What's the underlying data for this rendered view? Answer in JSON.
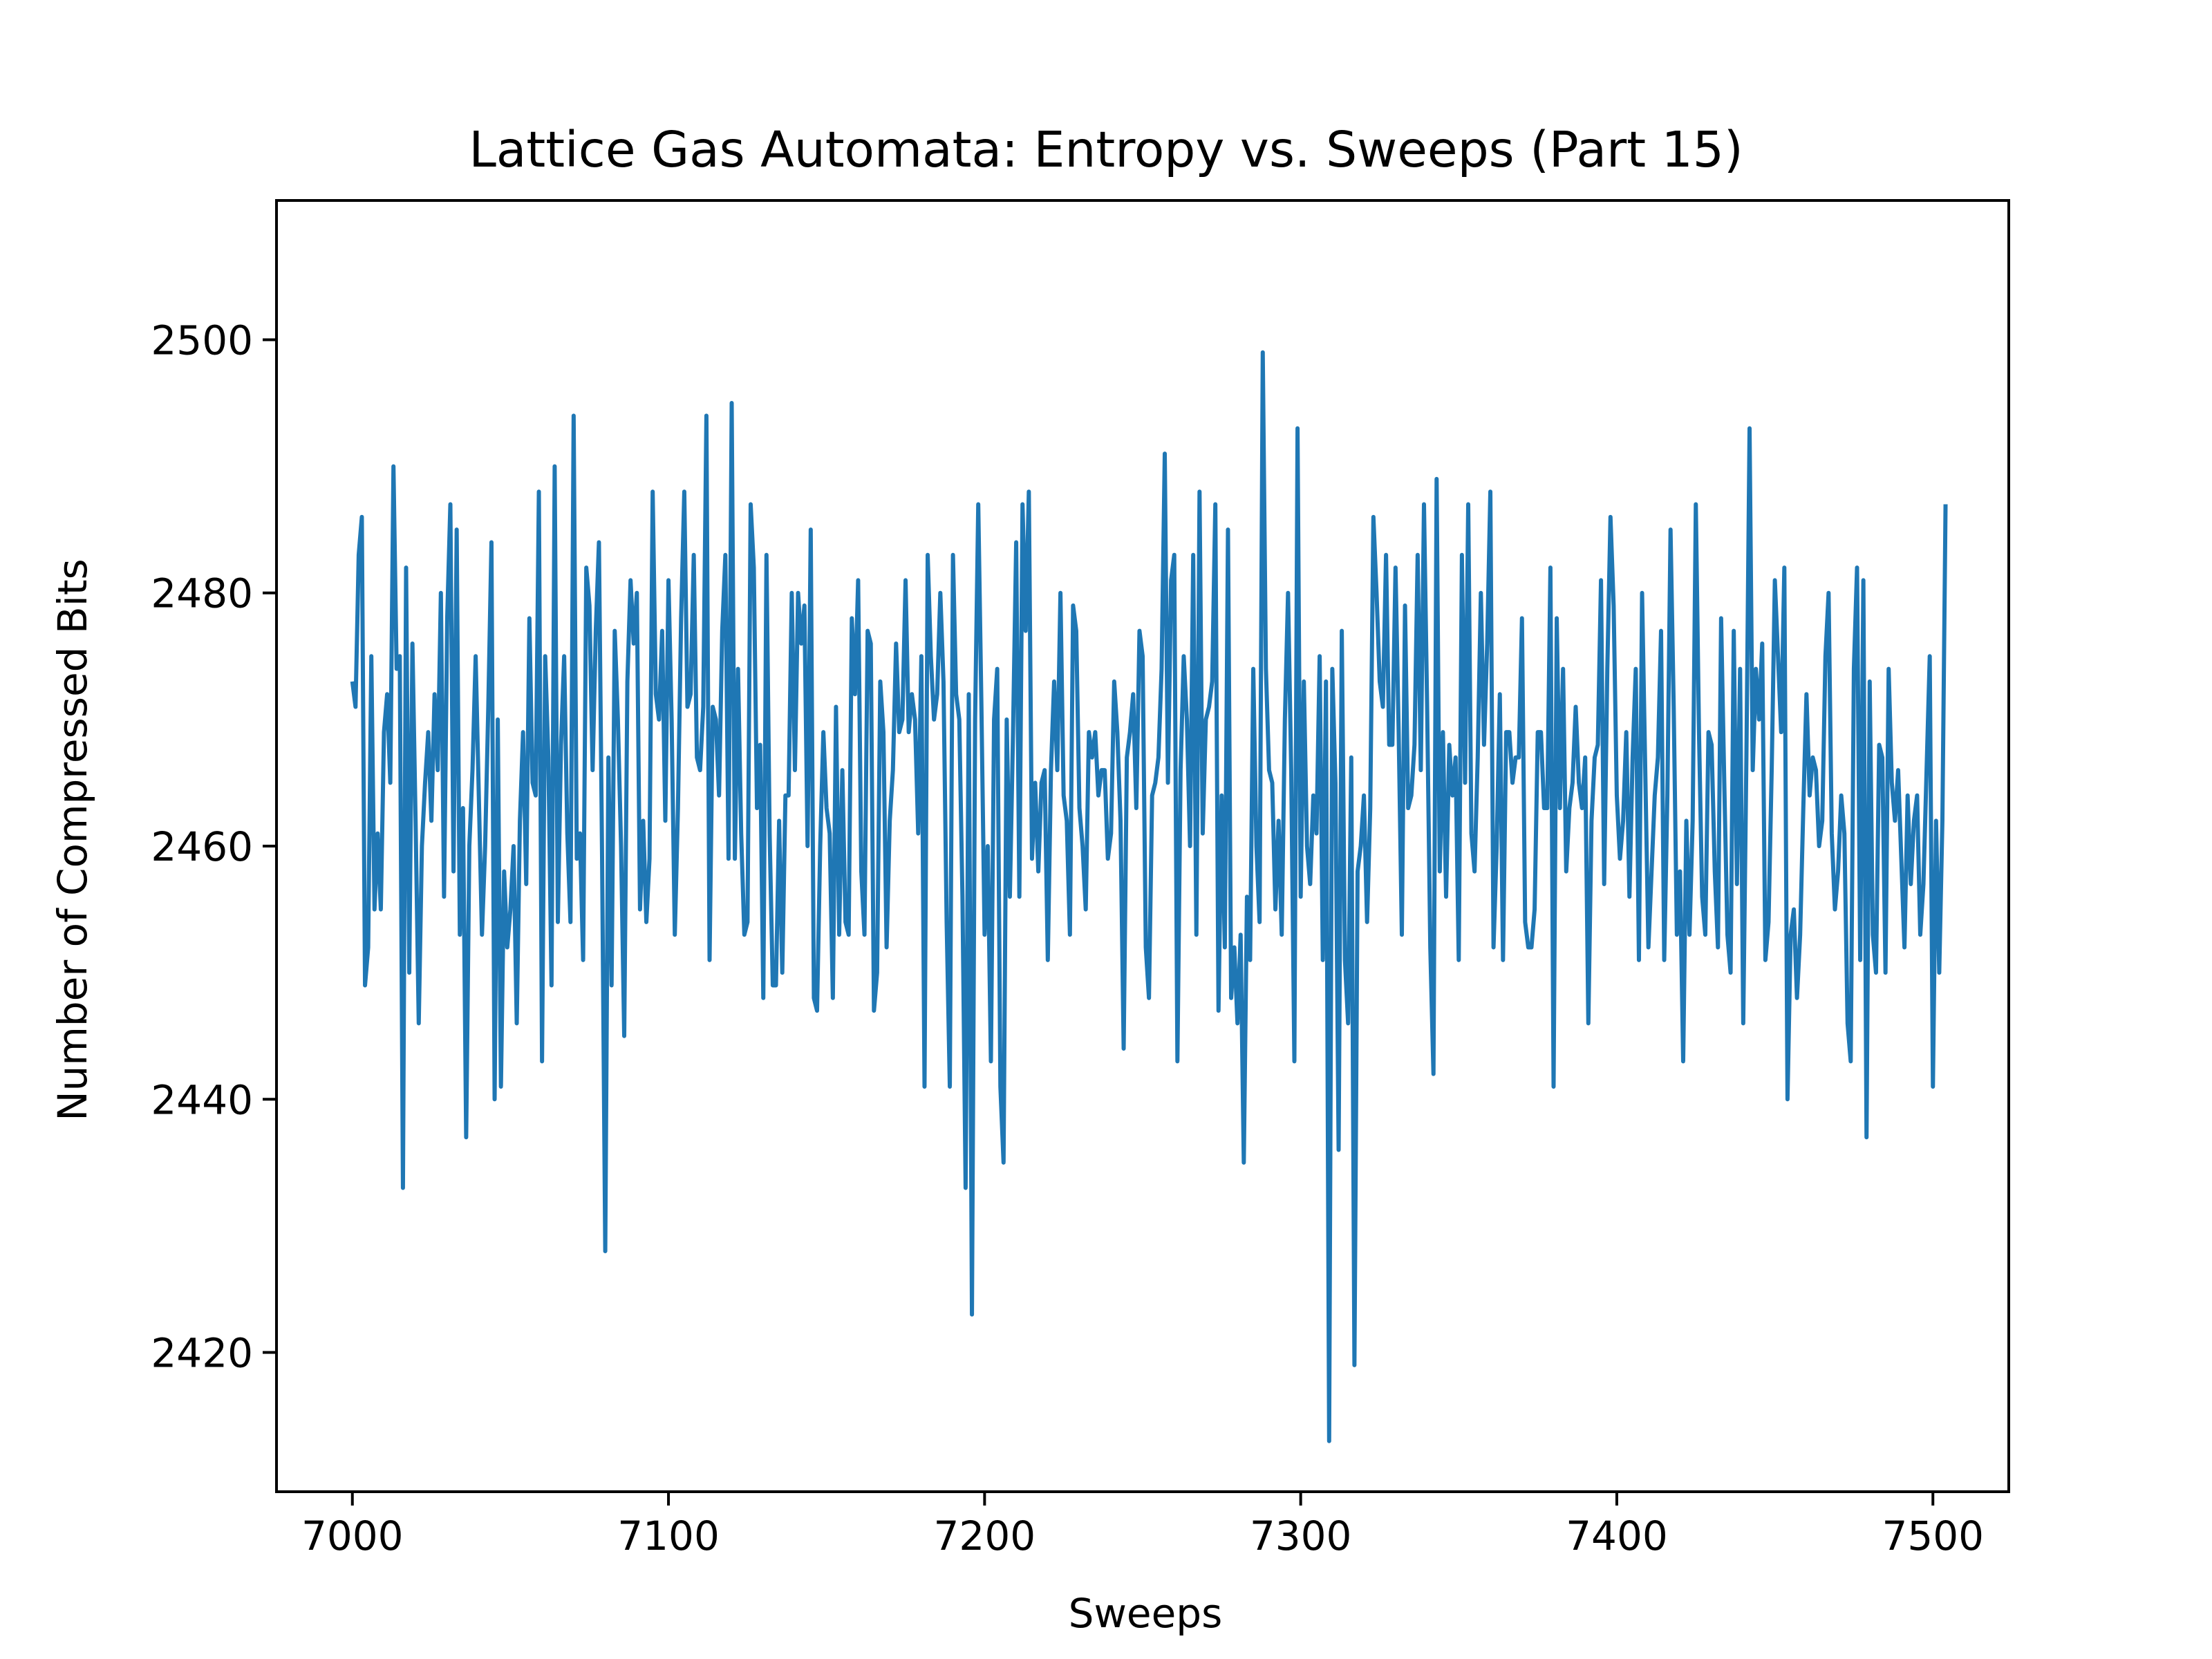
{
  "chart_data": {
    "type": "line",
    "title": "Lattice Gas Automata: Entropy vs. Sweeps (Part 15)",
    "xlabel": "Sweeps",
    "ylabel": "Number of Compressed Bits",
    "xlim": [
      6976,
      7524
    ],
    "ylim": [
      2409,
      2511
    ],
    "xticks": [
      7000,
      7100,
      7200,
      7300,
      7400,
      7500
    ],
    "yticks": [
      2420,
      2440,
      2460,
      2480,
      2500
    ],
    "grid": false,
    "legend": "none",
    "series": [
      {
        "color": "#1f77b4",
        "x_start": 7000,
        "x_step": 1,
        "values": [
          2473,
          2471,
          2483,
          2486,
          2449,
          2452,
          2475,
          2455,
          2461,
          2455,
          2469,
          2472,
          2465,
          2490,
          2474,
          2475,
          2433,
          2482,
          2450,
          2476,
          2462,
          2446,
          2460,
          2465,
          2469,
          2462,
          2472,
          2466,
          2480,
          2456,
          2478,
          2487,
          2458,
          2485,
          2453,
          2463,
          2437,
          2460,
          2466,
          2475,
          2464,
          2453,
          2460,
          2471,
          2484,
          2440,
          2470,
          2441,
          2458,
          2452,
          2455,
          2460,
          2446,
          2462,
          2469,
          2457,
          2478,
          2465,
          2464,
          2488,
          2443,
          2475,
          2467,
          2449,
          2490,
          2454,
          2468,
          2475,
          2461,
          2454,
          2494,
          2459,
          2461,
          2451,
          2482,
          2479,
          2466,
          2477,
          2484,
          2459,
          2428,
          2467,
          2449,
          2477,
          2470,
          2460,
          2445,
          2473,
          2481,
          2476,
          2480,
          2455,
          2462,
          2454,
          2459,
          2488,
          2472,
          2470,
          2477,
          2462,
          2481,
          2470,
          2453,
          2463,
          2478,
          2488,
          2471,
          2472,
          2483,
          2467,
          2466,
          2471,
          2494,
          2451,
          2471,
          2470,
          2464,
          2477,
          2483,
          2459,
          2495,
          2459,
          2474,
          2461,
          2453,
          2454,
          2487,
          2482,
          2463,
          2468,
          2448,
          2483,
          2461,
          2449,
          2449,
          2462,
          2450,
          2464,
          2464,
          2480,
          2466,
          2480,
          2476,
          2479,
          2460,
          2485,
          2448,
          2447,
          2460,
          2469,
          2463,
          2461,
          2448,
          2471,
          2453,
          2466,
          2454,
          2453,
          2478,
          2472,
          2481,
          2458,
          2453,
          2477,
          2476,
          2447,
          2450,
          2473,
          2469,
          2452,
          2462,
          2466,
          2476,
          2469,
          2470,
          2481,
          2469,
          2472,
          2470,
          2461,
          2475,
          2441,
          2483,
          2475,
          2470,
          2472,
          2480,
          2473,
          2454,
          2441,
          2483,
          2472,
          2470,
          2456,
          2433,
          2472,
          2423,
          2470,
          2487,
          2471,
          2453,
          2460,
          2443,
          2470,
          2474,
          2441,
          2435,
          2470,
          2456,
          2469,
          2484,
          2456,
          2487,
          2477,
          2488,
          2459,
          2465,
          2458,
          2465,
          2466,
          2451,
          2466,
          2473,
          2466,
          2480,
          2464,
          2462,
          2453,
          2479,
          2477,
          2463,
          2460,
          2455,
          2469,
          2467,
          2469,
          2464,
          2466,
          2466,
          2459,
          2461,
          2473,
          2469,
          2462,
          2444,
          2467,
          2469,
          2472,
          2463,
          2477,
          2475,
          2452,
          2448,
          2464,
          2465,
          2467,
          2474,
          2491,
          2465,
          2481,
          2483,
          2443,
          2466,
          2475,
          2470,
          2460,
          2483,
          2453,
          2488,
          2461,
          2470,
          2471,
          2473,
          2487,
          2447,
          2464,
          2452,
          2485,
          2448,
          2452,
          2446,
          2453,
          2435,
          2456,
          2451,
          2474,
          2460,
          2454,
          2499,
          2474,
          2466,
          2465,
          2455,
          2462,
          2453,
          2470,
          2480,
          2466,
          2443,
          2493,
          2456,
          2473,
          2460,
          2457,
          2464,
          2461,
          2475,
          2451,
          2473,
          2413,
          2474,
          2465,
          2436,
          2477,
          2451,
          2446,
          2467,
          2419,
          2458,
          2460,
          2464,
          2454,
          2463,
          2486,
          2480,
          2473,
          2471,
          2483,
          2468,
          2468,
          2482,
          2469,
          2453,
          2479,
          2463,
          2464,
          2468,
          2483,
          2466,
          2487,
          2471,
          2452,
          2442,
          2489,
          2458,
          2469,
          2456,
          2468,
          2464,
          2467,
          2451,
          2483,
          2465,
          2487,
          2461,
          2458,
          2467,
          2480,
          2468,
          2476,
          2488,
          2452,
          2460,
          2472,
          2451,
          2469,
          2469,
          2465,
          2467,
          2467,
          2478,
          2454,
          2452,
          2452,
          2455,
          2469,
          2469,
          2463,
          2463,
          2482,
          2441,
          2478,
          2463,
          2474,
          2458,
          2463,
          2465,
          2471,
          2465,
          2463,
          2467,
          2446,
          2462,
          2467,
          2468,
          2481,
          2457,
          2474,
          2486,
          2479,
          2464,
          2459,
          2462,
          2469,
          2456,
          2467,
          2474,
          2451,
          2480,
          2466,
          2452,
          2458,
          2464,
          2467,
          2477,
          2451,
          2464,
          2485,
          2471,
          2453,
          2458,
          2443,
          2462,
          2453,
          2462,
          2487,
          2469,
          2456,
          2453,
          2469,
          2468,
          2458,
          2452,
          2478,
          2465,
          2453,
          2450,
          2477,
          2457,
          2474,
          2446,
          2467,
          2493,
          2466,
          2474,
          2470,
          2476,
          2451,
          2454,
          2466,
          2481,
          2475,
          2469,
          2482,
          2440,
          2453,
          2455,
          2448,
          2453,
          2463,
          2472,
          2464,
          2467,
          2466,
          2460,
          2462,
          2475,
          2480,
          2461,
          2455,
          2458,
          2464,
          2461,
          2446,
          2443,
          2474,
          2482,
          2451,
          2481,
          2437,
          2473,
          2453,
          2450,
          2468,
          2467,
          2450,
          2474,
          2465,
          2462,
          2466,
          2459,
          2452,
          2464,
          2457,
          2462,
          2464,
          2453,
          2457,
          2466,
          2475,
          2441,
          2462,
          2450,
          2462,
          2487
        ]
      }
    ]
  }
}
